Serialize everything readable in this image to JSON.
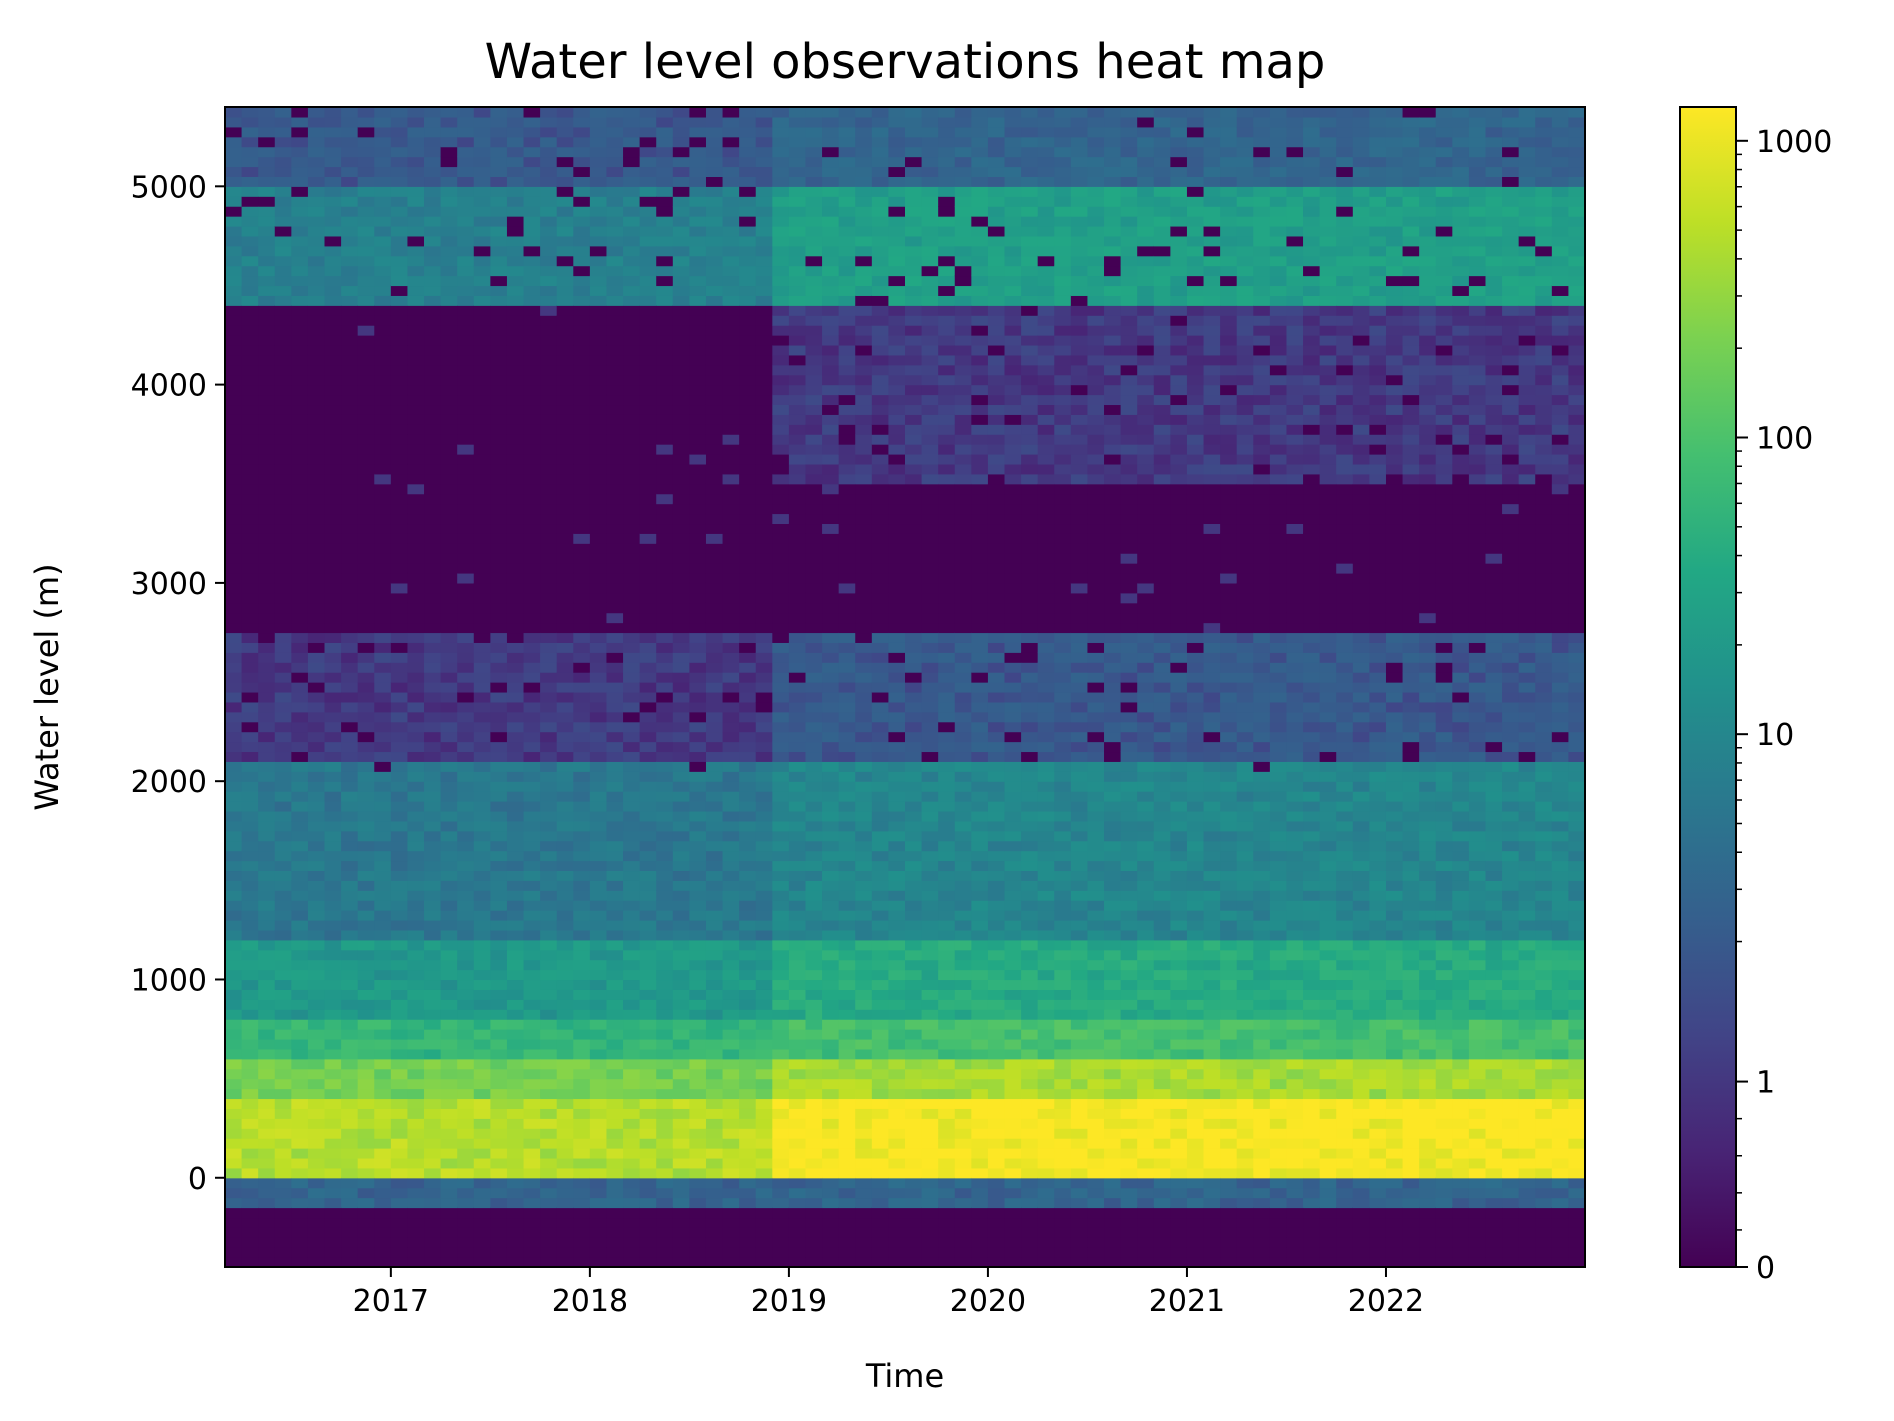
{
  "chart_data": {
    "type": "heatmap",
    "title": "Water level observations heat map",
    "xlabel": "Time",
    "ylabel": "Water level (m)",
    "x_range": [
      "2016-03",
      "2022-12"
    ],
    "x_ticks": [
      {
        "label": "2017",
        "value": "2017-01-01"
      },
      {
        "label": "2018",
        "value": "2018-01-01"
      },
      {
        "label": "2019",
        "value": "2019-01-01"
      },
      {
        "label": "2020",
        "value": "2020-01-01"
      },
      {
        "label": "2021",
        "value": "2021-01-01"
      },
      {
        "label": "2022",
        "value": "2022-01-01"
      }
    ],
    "ylim": [
      -450,
      5400
    ],
    "y_ticks": [
      0,
      1000,
      2000,
      3000,
      4000,
      5000
    ],
    "y_tick_labels": [
      "0",
      "1000",
      "2000",
      "3000",
      "4000",
      "5000"
    ],
    "y_bin_size": 50,
    "time_bin": "month",
    "colormap": "viridis",
    "colorbar": {
      "scale": "symlog",
      "range": [
        0,
        1300
      ],
      "ticks": [
        0,
        1,
        10,
        100,
        1000
      ],
      "tick_labels": [
        "0",
        "1",
        "10",
        "100",
        "1000"
      ]
    },
    "grid": false,
    "regime_change": "2018-12",
    "count_profile_before_2019_12": [
      {
        "from": -450,
        "to": -150,
        "count": 0
      },
      {
        "from": -150,
        "to": 0,
        "count": 3
      },
      {
        "from": 0,
        "to": 400,
        "count": 500
      },
      {
        "from": 400,
        "to": 600,
        "count": 200
      },
      {
        "from": 600,
        "to": 800,
        "count": 60
      },
      {
        "from": 800,
        "to": 1200,
        "count": 20
      },
      {
        "from": 1200,
        "to": 2100,
        "count": 6
      },
      {
        "from": 2100,
        "to": 2750,
        "count": 1
      },
      {
        "from": 2750,
        "to": 3500,
        "count": 0
      },
      {
        "from": 3500,
        "to": 4400,
        "count": 0
      },
      {
        "from": 4400,
        "to": 5000,
        "count": 8
      },
      {
        "from": 5000,
        "to": 5400,
        "count": 2
      }
    ],
    "count_profile_after_2019_12": [
      {
        "from": -450,
        "to": -150,
        "count": 0
      },
      {
        "from": -150,
        "to": 0,
        "count": 3
      },
      {
        "from": 0,
        "to": 400,
        "count": 1300
      },
      {
        "from": 400,
        "to": 600,
        "count": 400
      },
      {
        "from": 600,
        "to": 800,
        "count": 90
      },
      {
        "from": 800,
        "to": 1200,
        "count": 40
      },
      {
        "from": 1200,
        "to": 2100,
        "count": 10
      },
      {
        "from": 2100,
        "to": 2750,
        "count": 2
      },
      {
        "from": 2750,
        "to": 3500,
        "count": 0
      },
      {
        "from": 3500,
        "to": 4400,
        "count": 1
      },
      {
        "from": 4400,
        "to": 5000,
        "count": 25
      },
      {
        "from": 5000,
        "to": 5400,
        "count": 3
      }
    ]
  }
}
